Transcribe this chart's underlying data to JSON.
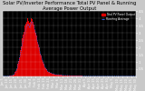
{
  "title": "Solar PV/Inverter Performance Total PV Panel & Running Average Power Output",
  "title_fontsize": 3.8,
  "bg_color": "#c8c8c8",
  "plot_bg_color": "#000000",
  "bar_color": "#dd0000",
  "bar_edge_color": "#ff3333",
  "avg_line_color": "#3366ff",
  "grid_color": "#ffffff",
  "text_color": "#000000",
  "plot_text_color": "#ffffff",
  "tick_fontsize": 2.5,
  "ylim": [
    0,
    4.5
  ],
  "yticks": [
    0.5,
    1.0,
    1.5,
    2.0,
    2.5,
    3.0,
    3.5,
    4.0,
    4.5
  ],
  "ytick_labels": [
    "0.5",
    "1",
    "1.5",
    "2",
    "2.5",
    "3",
    "3.5",
    "4",
    "4.5"
  ],
  "legend_entries": [
    "Total PV Panel Output",
    "Running Average"
  ],
  "legend_colors": [
    "#dd0000",
    "#3366ff"
  ],
  "num_bars": 200,
  "bar_heights": [
    0.02,
    0.02,
    0.02,
    0.02,
    0.02,
    0.02,
    0.02,
    0.02,
    0.02,
    0.02,
    0.03,
    0.04,
    0.05,
    0.06,
    0.08,
    0.1,
    0.15,
    0.2,
    0.28,
    0.38,
    0.5,
    0.65,
    0.85,
    1.05,
    1.3,
    1.55,
    1.8,
    2.1,
    2.4,
    2.65,
    2.9,
    3.1,
    3.3,
    3.5,
    3.65,
    3.8,
    3.9,
    4.0,
    3.85,
    3.7,
    3.55,
    3.8,
    4.0,
    4.1,
    3.95,
    3.75,
    3.6,
    3.4,
    3.2,
    3.0,
    2.8,
    2.6,
    2.4,
    2.2,
    2.0,
    1.8,
    1.6,
    1.45,
    1.3,
    1.15,
    1.0,
    0.88,
    0.75,
    0.65,
    0.55,
    0.48,
    0.42,
    0.37,
    0.33,
    0.3,
    0.28,
    0.26,
    0.24,
    0.22,
    0.2,
    0.18,
    0.17,
    0.16,
    0.15,
    0.14,
    0.13,
    0.13,
    0.12,
    0.12,
    0.11,
    0.11,
    0.1,
    0.1,
    0.09,
    0.09,
    0.08,
    0.08,
    0.08,
    0.07,
    0.07,
    0.07,
    0.06,
    0.06,
    0.06,
    0.06,
    0.05,
    0.05,
    0.05,
    0.05,
    0.05,
    0.04,
    0.04,
    0.04,
    0.04,
    0.04,
    0.04,
    0.03,
    0.03,
    0.03,
    0.03,
    0.03,
    0.03,
    0.03,
    0.03,
    0.03,
    0.02,
    0.02,
    0.02,
    0.02,
    0.02,
    0.02,
    0.02,
    0.02,
    0.02,
    0.02,
    0.02,
    0.02,
    0.02,
    0.02,
    0.02,
    0.02,
    0.02,
    0.02,
    0.02,
    0.02,
    0.02,
    0.02,
    0.02,
    0.02,
    0.02,
    0.02,
    0.02,
    0.02,
    0.02,
    0.02,
    0.02,
    0.02,
    0.02,
    0.02,
    0.02,
    0.02,
    0.02,
    0.02,
    0.02,
    0.02,
    0.02,
    0.02,
    0.02,
    0.02,
    0.02,
    0.02,
    0.02,
    0.02,
    0.02,
    0.02,
    0.02,
    0.02,
    0.02,
    0.02,
    0.02,
    0.02,
    0.02,
    0.02,
    0.02,
    0.02,
    0.02,
    0.02,
    0.02,
    0.02,
    0.02,
    0.02,
    0.02,
    0.02,
    0.02,
    0.02,
    0.02,
    0.02,
    0.02,
    0.02,
    0.02,
    0.02,
    0.02,
    0.02,
    0.02,
    0.02
  ],
  "avg_line_y": [
    0.02,
    0.02,
    0.02,
    0.02,
    0.02,
    0.02,
    0.02,
    0.02,
    0.02,
    0.02,
    0.03,
    0.04,
    0.05,
    0.06,
    0.07,
    0.09,
    0.13,
    0.17,
    0.24,
    0.32,
    0.42,
    0.56,
    0.72,
    0.9,
    1.12,
    1.32,
    1.55,
    1.8,
    2.05,
    2.28,
    2.5,
    2.72,
    2.9,
    3.08,
    3.25,
    3.4,
    3.52,
    3.62,
    3.55,
    3.45,
    3.35,
    3.52,
    3.68,
    3.8,
    3.72,
    3.6,
    3.48,
    3.3,
    3.12,
    2.92,
    2.72,
    2.52,
    2.32,
    2.12,
    1.92,
    1.72,
    1.52,
    1.38,
    1.24,
    1.1,
    0.95,
    0.84,
    0.72,
    0.62,
    0.52,
    0.46,
    0.4,
    0.36,
    0.32,
    0.29,
    0.27,
    0.25,
    0.23,
    0.21,
    0.19,
    0.17,
    0.16,
    0.15,
    0.14,
    0.13,
    0.12,
    0.12,
    0.11,
    0.11,
    0.1,
    0.1,
    0.09,
    0.09,
    0.08,
    0.08,
    0.08,
    0.07,
    0.07,
    0.07,
    0.06,
    0.06,
    0.06,
    0.06,
    0.05,
    0.05,
    0.05,
    0.05,
    0.04,
    0.04,
    0.04,
    0.04,
    0.04,
    0.04,
    0.04,
    0.03,
    0.03,
    0.03,
    0.03,
    0.03,
    0.03,
    0.03,
    0.03,
    0.03,
    0.03,
    0.03,
    0.02,
    0.02,
    0.02,
    0.02,
    0.02,
    0.02,
    0.02,
    0.02,
    0.02,
    0.02,
    0.02,
    0.02,
    0.02,
    0.02,
    0.02,
    0.02,
    0.02,
    0.02,
    0.02,
    0.02,
    0.02,
    0.02,
    0.02,
    0.02,
    0.02,
    0.02,
    0.02,
    0.02,
    0.02,
    0.02,
    0.02,
    0.02,
    0.02,
    0.02,
    0.02,
    0.02,
    0.02,
    0.02,
    0.02,
    0.02,
    0.02,
    0.02,
    0.02,
    0.02,
    0.02,
    0.02,
    0.02,
    0.02,
    0.02,
    0.02,
    0.02,
    0.02,
    0.02,
    0.02,
    0.02,
    0.02,
    0.02,
    0.02,
    0.02,
    0.02,
    0.02,
    0.02,
    0.02,
    0.02,
    0.02,
    0.02,
    0.02,
    0.02,
    0.02,
    0.02,
    0.02,
    0.02,
    0.02,
    0.02,
    0.02,
    0.02,
    0.02,
    0.02,
    0.02,
    0.02
  ],
  "xtick_labels": [
    "Jan 5",
    "Jan 10",
    "Jan 15",
    "Jan 20",
    "Jan 25",
    "Jan 30",
    "Feb 4",
    "Feb 9",
    "Feb 14",
    "Feb 19",
    "Feb 24",
    "Mar 1",
    "Mar 6",
    "Mar 11",
    "Mar 16",
    "Mar 21",
    "Mar 26",
    "Mar 31",
    "Apr 5",
    "Apr 10",
    "Apr 15",
    "Apr 20",
    "Apr 25",
    "Apr 30",
    "May 5",
    "May 10",
    "May 15",
    "May 20",
    "May 25",
    "May 30"
  ],
  "num_xticks": 30,
  "right_ytick_fontsize": 2.8
}
